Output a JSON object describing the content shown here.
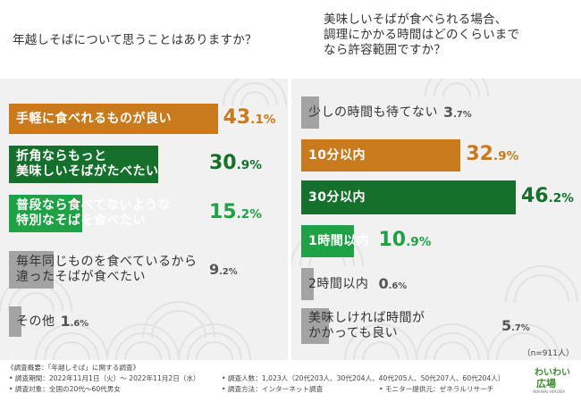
{
  "chart_data": [
    {
      "type": "bar",
      "title": "年越しそばについて思うことはありますか？",
      "categories": [
        "手軽に食べれるものが良い",
        "折角ならもっと\n美味しいそばがたべたい",
        "普段なら食べてないような\n特別なそばを食べたい",
        "毎年同じものを食べているから\n違ったそばが食べたい",
        "その他"
      ],
      "values": [
        43.1,
        30.9,
        15.2,
        9.2,
        1.6
      ],
      "colors": [
        "#c97a1c",
        "#15702c",
        "#1fa245",
        "#a3a3a3",
        "#a3a3a3"
      ],
      "label_colors": [
        "#ffffff",
        "#ffffff",
        "#ffffff",
        "#333333",
        "#333333"
      ],
      "value_colors": [
        "#c97a1c",
        "#15702c",
        "#1fa245",
        "#555555",
        "#555555"
      ]
    },
    {
      "type": "bar",
      "title": "美味しいそばが食べられる場合、\n調理にかかる時間はどのくらいまで\nなら許容範囲ですか？",
      "categories": [
        "少しの時間も待てない",
        "10分以内",
        "30分以内",
        "1時間以内",
        "2時間以内",
        "美味しければ時間が\nかかっても良い"
      ],
      "values": [
        3.7,
        32.9,
        46.2,
        10.9,
        0.6,
        5.7
      ],
      "colors": [
        "#a3a3a3",
        "#c97a1c",
        "#15702c",
        "#1fa245",
        "#a3a3a3",
        "#a3a3a3"
      ],
      "label_colors": [
        "#333333",
        "#ffffff",
        "#ffffff",
        "#ffffff",
        "#333333",
        "#333333"
      ],
      "value_colors": [
        "#555555",
        "#c97a1c",
        "#15702c",
        "#1fa245",
        "#555555",
        "#555555"
      ]
    }
  ],
  "unit_suffix": "%",
  "n_note": "（n=911人）",
  "footer": {
    "line1": "《調査概要：「年越しそば」に関する調査》",
    "period": "• 調査期間：2022年11月1日（火）～ 2022年11月2日（水）",
    "count": "• 調査人数：1,023人（20代203人、30代204人、40代205人、50代207人、60代204人）",
    "target": "• 調査対象：全国の20代～60代男女",
    "method": "• 調査方法：インターネット調査",
    "provider": "• モニター提供元：ゼネラルリサーチ"
  },
  "logo": {
    "line1": "わいわい",
    "line2": "広場",
    "line3": "WAIWAI HIROBA"
  }
}
